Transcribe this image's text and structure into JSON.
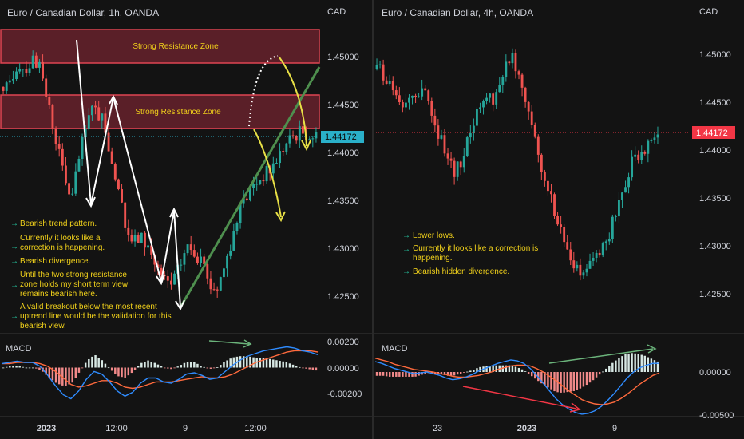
{
  "colors": {
    "background": "#131313",
    "up_candle": "#26a69a",
    "down_candle": "#ef5350",
    "zone_fill": "#5a1f28",
    "zone_border": "#e04552",
    "trendline": "#4e8f4e",
    "annotation_text": "#f2d21b",
    "arrow_yellow": "#e8e046",
    "bullet_arrow": "#26c6a0",
    "macd_line": "#2f8cff",
    "signal_line": "#ff6a3d",
    "divergence_green": "#6bb47b",
    "divergence_red": "#f23645",
    "price_label_bg": "#f23645",
    "price_label_bg_left": "#2ab0c9"
  },
  "chart_data": [
    {
      "id": "left",
      "type": "candlestick",
      "title": "Euro / Canadian Dollar, 1h, OANDA",
      "price_axis_unit": "CAD",
      "yticks": [
        "1.45000",
        "1.44500",
        "1.44000",
        "1.43500",
        "1.43000",
        "1.42500"
      ],
      "ytick_values": [
        1.45,
        1.445,
        1.44,
        1.435,
        1.43,
        1.425
      ],
      "ylim": [
        1.4218,
        1.4539
      ],
      "current_price": "1.44172",
      "current_price_value": 1.44172,
      "xticks": [
        "2023",
        "12:00",
        "9",
        "12:00"
      ],
      "price_path": [
        1.4458,
        1.4478,
        1.4494,
        1.4488,
        1.4499,
        1.4482,
        1.4446,
        1.4412,
        1.4372,
        1.4352,
        1.4396,
        1.4432,
        1.4446,
        1.4432,
        1.4402,
        1.4362,
        1.4322,
        1.4306,
        1.4312,
        1.4302,
        1.4282,
        1.4266,
        1.4262,
        1.4278,
        1.4302,
        1.4298,
        1.4282,
        1.4262,
        1.4258,
        1.4282,
        1.4312,
        1.4338,
        1.4356,
        1.4368,
        1.4376,
        1.4382,
        1.4396,
        1.4408,
        1.4418,
        1.4422,
        1.4419,
        1.4417
      ],
      "zones": [
        {
          "label": "Strong Resistance Zone",
          "low": 1.4493,
          "high": 1.4526
        },
        {
          "label": "Strong Resistance Zone",
          "low": 1.4423,
          "high": 1.4459
        }
      ],
      "annotations": [
        "Bearish trend pattern.",
        "Currently it looks like a correction is happening.",
        "Bearish divergence.",
        "Until the two strong resistance zone holds my short term view remains bearish here.",
        "A valid breakout below the most recent uptrend line would be the validation for this bearish view."
      ],
      "macd": {
        "label": "MACD",
        "yticks": [
          "0.00200",
          "0.00000",
          "-0.00200"
        ],
        "ytick_values": [
          0.002,
          0.0,
          -0.002
        ],
        "ylim": [
          -0.0032,
          0.0026
        ],
        "macd_line": [
          0.0003,
          0.0004,
          0.0005,
          0.0004,
          0.0004,
          0.0001,
          -0.0006,
          -0.0014,
          -0.0021,
          -0.0024,
          -0.0018,
          -0.0009,
          -0.0003,
          -0.0005,
          -0.0011,
          -0.0018,
          -0.0022,
          -0.0019,
          -0.0012,
          -0.0008,
          -0.0008,
          -0.0011,
          -0.0012,
          -0.0009,
          -0.0005,
          -0.0004,
          -0.0006,
          -0.0009,
          -0.0008,
          -0.0003,
          0.0002,
          0.0006,
          0.0009,
          0.0011,
          0.0013,
          0.0014,
          0.0015,
          0.0016,
          0.0015,
          0.0013,
          0.0012,
          0.001
        ],
        "signal_line": [
          0.0003,
          0.0003,
          0.0004,
          0.0004,
          0.0004,
          0.0003,
          0.0001,
          -0.0003,
          -0.0008,
          -0.0013,
          -0.0015,
          -0.0014,
          -0.0012,
          -0.001,
          -0.001,
          -0.0012,
          -0.0015,
          -0.0016,
          -0.0015,
          -0.0013,
          -0.0011,
          -0.0011,
          -0.0011,
          -0.001,
          -0.0009,
          -0.0008,
          -0.0007,
          -0.0008,
          -0.0008,
          -0.0007,
          -0.0005,
          -0.0002,
          0.0001,
          0.0004,
          0.0006,
          0.0008,
          0.001,
          0.0012,
          0.0013,
          0.0013,
          0.0013,
          0.0012
        ]
      }
    },
    {
      "id": "right",
      "type": "candlestick",
      "title": "Euro / Canadian Dollar, 4h, OANDA",
      "price_axis_unit": "CAD",
      "yticks": [
        "1.45000",
        "1.44500",
        "1.44000",
        "1.43500",
        "1.43000",
        "1.42500"
      ],
      "ytick_values": [
        1.45,
        1.445,
        1.44,
        1.435,
        1.43,
        1.425
      ],
      "ylim": [
        1.4226,
        1.4548
      ],
      "current_price": "1.44172",
      "current_price_value": 1.44172,
      "xticks": [
        "23",
        "2023",
        "9"
      ],
      "price_path": [
        1.4492,
        1.4472,
        1.4478,
        1.4462,
        1.4452,
        1.4446,
        1.4457,
        1.4466,
        1.4449,
        1.4429,
        1.4412,
        1.4396,
        1.4372,
        1.4386,
        1.4402,
        1.4426,
        1.4446,
        1.4456,
        1.4452,
        1.4466,
        1.4482,
        1.4501,
        1.4486,
        1.4462,
        1.4436,
        1.4406,
        1.4376,
        1.4352,
        1.4336,
        1.4308,
        1.4292,
        1.4276,
        1.4266,
        1.4276,
        1.4286,
        1.4296,
        1.4306,
        1.4326,
        1.4346,
        1.4366,
        1.4386,
        1.4396,
        1.4404,
        1.4418,
        1.4417
      ],
      "annotations": [
        "Lower lows.",
        "Currently it looks like a correction is happening.",
        "Bearish hidden divergence."
      ],
      "macd": {
        "label": "MACD",
        "yticks": [
          "0.00000",
          "-0.00500"
        ],
        "ytick_values": [
          0.0,
          -0.005
        ],
        "ylim": [
          -0.0058,
          0.0028
        ],
        "macd_line": [
          0.0012,
          0.001,
          0.0007,
          0.0004,
          0.0002,
          0.0,
          -0.0002,
          -0.0001,
          0.0,
          -0.0002,
          -0.0004,
          -0.0007,
          -0.0009,
          -0.0008,
          -0.0006,
          -0.0003,
          0.0001,
          0.0004,
          0.0007,
          0.001,
          0.0012,
          0.0014,
          0.0013,
          0.001,
          0.0004,
          -0.0004,
          -0.0013,
          -0.0022,
          -0.0031,
          -0.0038,
          -0.0043,
          -0.0047,
          -0.0049,
          -0.0048,
          -0.0045,
          -0.004,
          -0.0033,
          -0.0025,
          -0.0016,
          -0.0007,
          0.0,
          0.0005,
          0.0008,
          0.001,
          0.001
        ],
        "signal_line": [
          0.0016,
          0.0014,
          0.0012,
          0.0009,
          0.0007,
          0.0005,
          0.0003,
          0.0002,
          0.0001,
          0.0,
          -0.0002,
          -0.0003,
          -0.0005,
          -0.0006,
          -0.0006,
          -0.0005,
          -0.0004,
          -0.0002,
          0.0,
          0.0003,
          0.0005,
          0.0007,
          0.0008,
          0.0008,
          0.0007,
          0.0004,
          0.0,
          -0.0005,
          -0.001,
          -0.0016,
          -0.0022,
          -0.0027,
          -0.0032,
          -0.0035,
          -0.0037,
          -0.0038,
          -0.0037,
          -0.0035,
          -0.0031,
          -0.0026,
          -0.002,
          -0.0014,
          -0.0009,
          -0.0004,
          -0.0001
        ]
      }
    }
  ]
}
